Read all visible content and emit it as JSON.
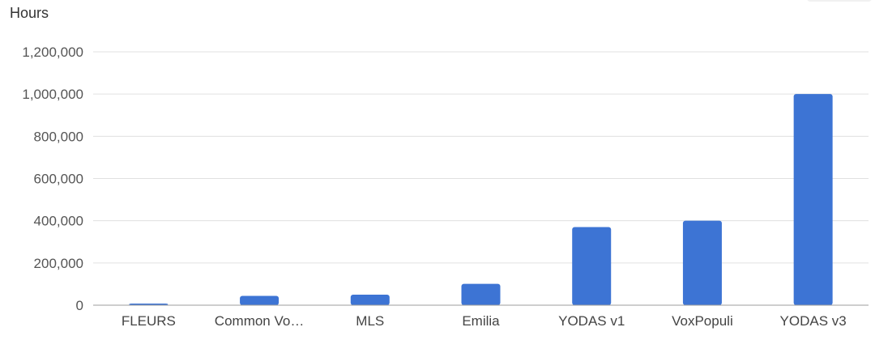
{
  "chart_data": {
    "type": "bar",
    "ylabel": "Hours",
    "xlabel": "",
    "categories": [
      "FLEURS",
      "Common Vo…",
      "MLS",
      "Emilia",
      "YODAS v1",
      "VoxPopuli",
      "YODAS v3"
    ],
    "values": [
      1400,
      44000,
      50000,
      101000,
      370000,
      400000,
      1000000
    ],
    "ylim": [
      0,
      1200000
    ],
    "yticks": [
      {
        "value": 0,
        "label": "0"
      },
      {
        "value": 200000,
        "label": "200,000"
      },
      {
        "value": 400000,
        "label": "400,000"
      },
      {
        "value": 600000,
        "label": "600,000"
      },
      {
        "value": 800000,
        "label": "800,000"
      },
      {
        "value": 1000000,
        "label": "1,000,000"
      },
      {
        "value": 1200000,
        "label": "1,200,000"
      }
    ],
    "grid": true,
    "bar_color": "#3d74d4"
  }
}
